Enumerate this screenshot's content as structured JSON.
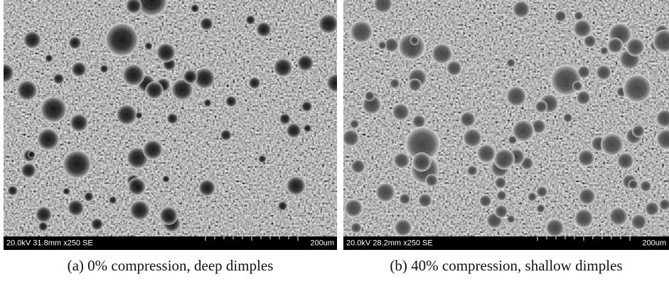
{
  "panels": [
    {
      "info": "20.0kV 31.8mm x250 SE",
      "scale": "200um",
      "caption": "(a) 0% compression, deep dimples"
    },
    {
      "info": "20.0kV 28.2mm x250 SE",
      "scale": "200um",
      "caption": "(b) 40% compression, shallow dimples"
    }
  ]
}
